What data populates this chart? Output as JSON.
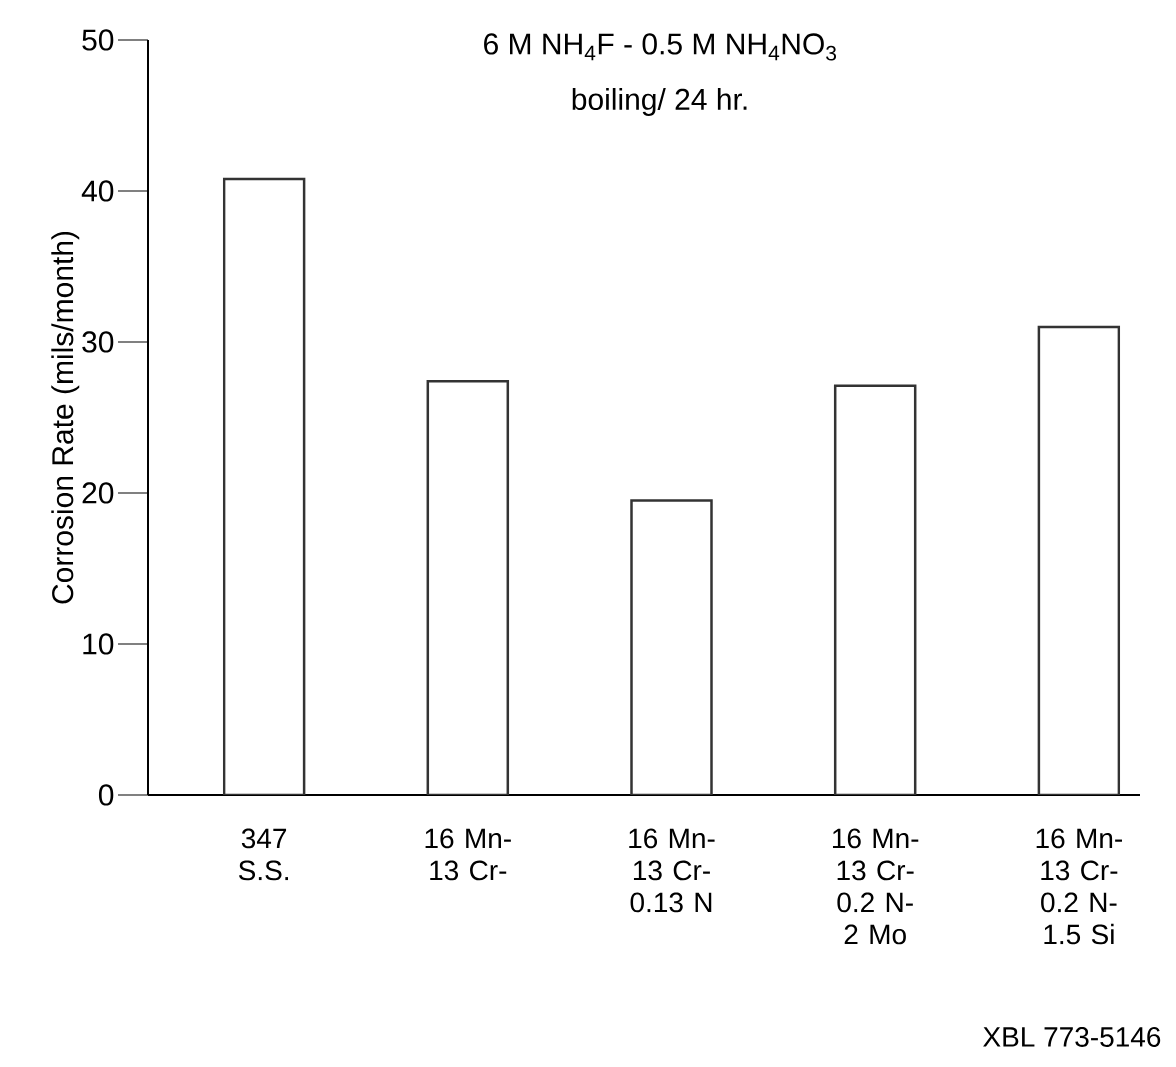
{
  "chart_data": {
    "type": "bar",
    "title": "6 M NH$_{4}$F - 0.5 M NH$_{4}$NO$_{3}$",
    "subtitle": "boiling/ 24 hr.",
    "ylabel": "Corrosion Rate (mils/month)",
    "categories": [
      "347 S.S.",
      "16 Mn- 13 Cr-",
      "16 Mn- 13 Cr- 0.13 N",
      "16 Mn- 13 Cr- 0.2 N- 2 Mo",
      "16 Mn- 13 Cr- 0.2 N- 1.5 Si"
    ],
    "values": [
      40.8,
      27.4,
      19.5,
      27.1,
      31.0
    ],
    "ylim": [
      0,
      50
    ],
    "yticks": [
      0,
      10,
      20,
      30,
      40,
      50
    ],
    "annotations": [
      "XBL 773-5146"
    ]
  }
}
